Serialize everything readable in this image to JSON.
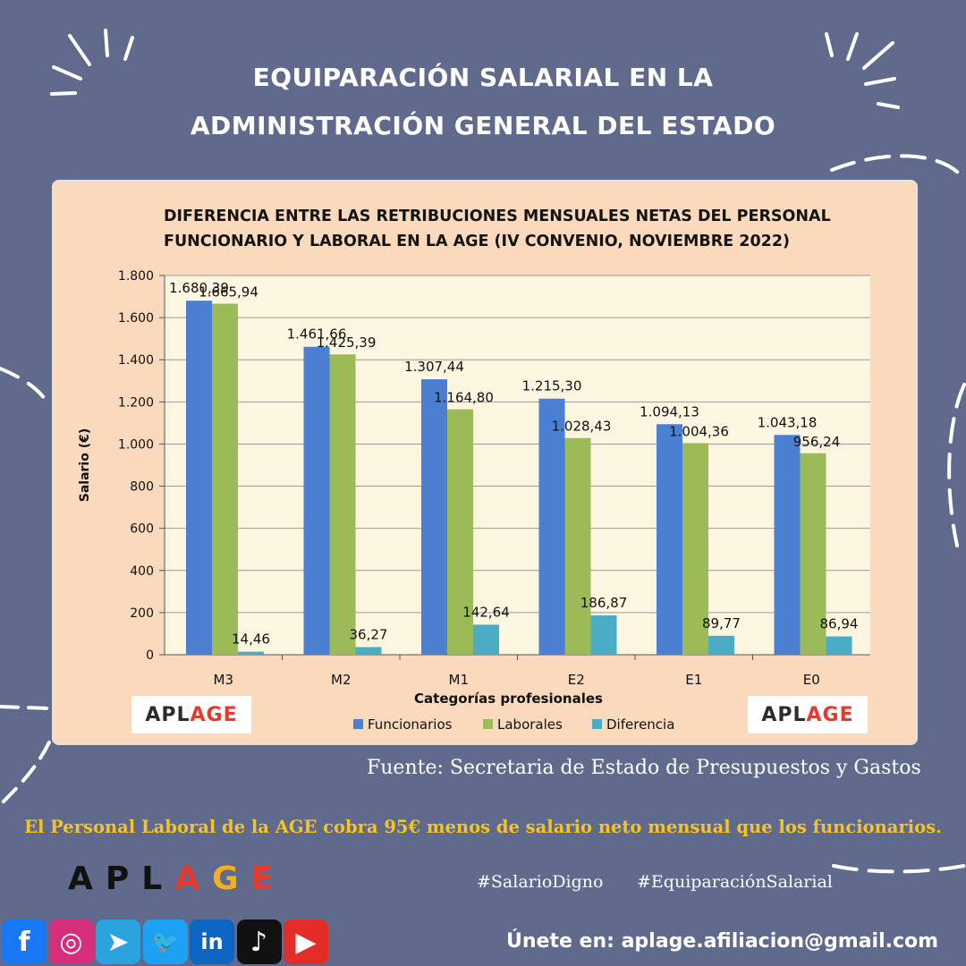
{
  "header": {
    "title_line1": "EQUIPARACIÓN SALARIAL EN LA",
    "title_line2": "ADMINISTRACIÓN GENERAL DEL ESTADO"
  },
  "chart_title": {
    "line1": "DIFERENCIA ENTRE LAS RETRIBUCIONES MENSUALES NETAS DEL PERSONAL",
    "line2": "FUNCIONARIO Y LABORAL EN LA AGE (IV CONVENIO, NOVIEMBRE 2022)"
  },
  "chart_data": {
    "type": "bar",
    "title": "DIFERENCIA ENTRE LAS RETRIBUCIONES MENSUALES NETAS DEL PERSONAL FUNCIONARIO Y LABORAL EN LA AGE (IV CONVENIO, NOVIEMBRE 2022)",
    "xlabel": "Categorías profesionales",
    "ylabel": "Salario (€)",
    "ylim": [
      0,
      1800
    ],
    "yticks": [
      0,
      200,
      400,
      600,
      800,
      1000,
      1200,
      1400,
      1600,
      1800
    ],
    "ytick_labels": [
      "0",
      "200",
      "400",
      "600",
      "800",
      "1.000",
      "1.200",
      "1.400",
      "1.600",
      "1.800"
    ],
    "categories": [
      "M3",
      "M2",
      "M1",
      "E2",
      "E1",
      "E0"
    ],
    "series": [
      {
        "name": "Funcionarios",
        "color": "#4a7fd1",
        "values": [
          1680.39,
          1461.66,
          1307.44,
          1215.3,
          1094.13,
          1043.18
        ],
        "labels": [
          "1.680,39",
          "1.461,66",
          "1.307,44",
          "1.215,30",
          "1.094,13",
          "1.043,18"
        ]
      },
      {
        "name": "Laborales",
        "color": "#9bbb59",
        "values": [
          1665.94,
          1425.39,
          1164.8,
          1028.43,
          1004.36,
          956.24
        ],
        "labels": [
          "1.665,94",
          "1.425,39",
          "1.164,80",
          "1.028,43",
          "1.004,36",
          "956,24"
        ]
      },
      {
        "name": "Diferencia",
        "color": "#4bacc6",
        "values": [
          14.46,
          36.27,
          142.64,
          186.87,
          89.77,
          86.94
        ],
        "labels": [
          "14,46",
          "36,27",
          "142,64",
          "186,87",
          "89,77",
          "86,94"
        ]
      }
    ],
    "grid": true,
    "legend": "bottom"
  },
  "logos": {
    "left": [
      "APL",
      "AGE"
    ],
    "right": [
      "APL",
      "AGE"
    ],
    "colors": {
      "dark": "#2c2c2c",
      "red": "#e53a2e",
      "yellow": "#f2b01e"
    }
  },
  "source_text": "Fuente: Secretaria de Estado de Presupuestos y Gastos",
  "claim_text": "El Personal Laboral de la AGE cobra 95€ menos de salario neto mensual que los funcionarios.",
  "brand": {
    "letters": [
      "A",
      "P",
      "L",
      "A",
      "G",
      "E"
    ],
    "colors": [
      "#111111",
      "#111111",
      "#111111",
      "#e53a2e",
      "#f2b01e",
      "#e53a2e"
    ]
  },
  "hashtags": [
    "#SalarioDigno",
    "#EquiparaciónSalarial"
  ],
  "join_text": "Únete en: aplage.afiliacion@gmail.com",
  "social": [
    {
      "icon": "facebook-icon",
      "glyph": "f",
      "bg": "#1877f2"
    },
    {
      "icon": "instagram-icon",
      "glyph": "◎",
      "bg": "#d62e7a"
    },
    {
      "icon": "telegram-icon",
      "glyph": "➤",
      "bg": "#2aa3df"
    },
    {
      "icon": "twitter-icon",
      "glyph": "🐦",
      "bg": "#1da1f2"
    },
    {
      "icon": "linkedin-icon",
      "glyph": "in",
      "bg": "#0a66c2"
    },
    {
      "icon": "tiktok-icon",
      "glyph": "♪",
      "bg": "#111111"
    },
    {
      "icon": "youtube-icon",
      "glyph": "▶",
      "bg": "#e52d27"
    }
  ],
  "colors": {
    "background": "#5f6a8c",
    "panel": "#fbd9bd",
    "plot": "#fcf5df",
    "accent": "#f2c428"
  }
}
